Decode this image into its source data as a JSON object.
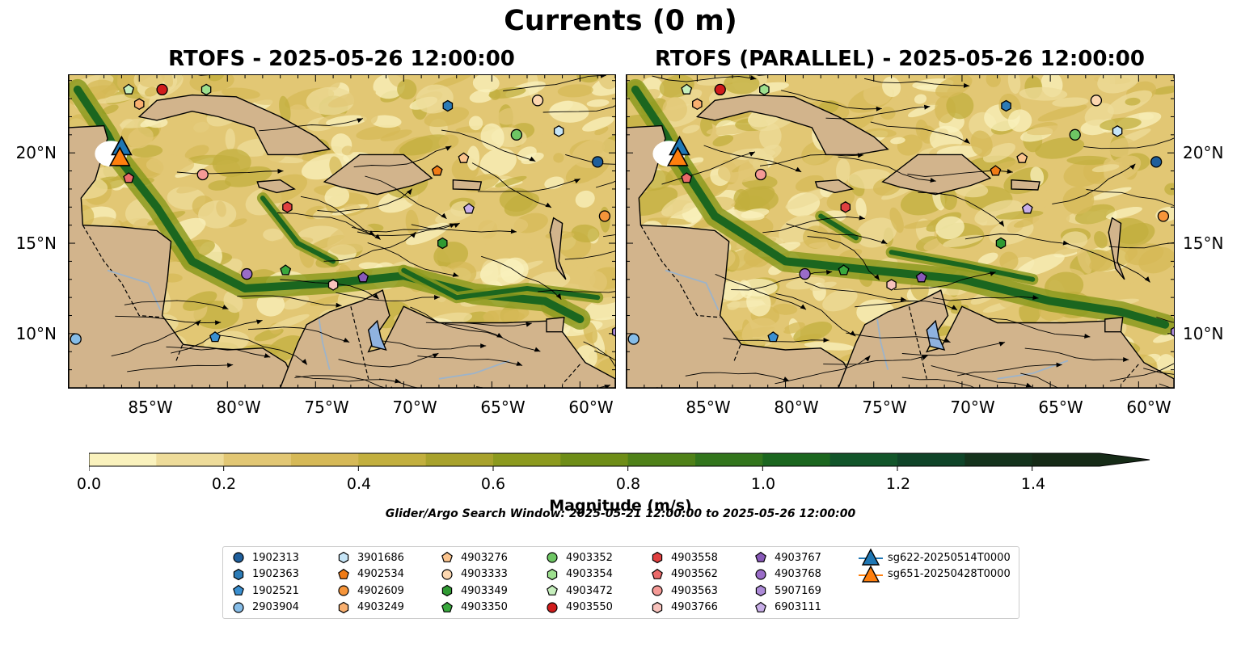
{
  "title": "Currents (0 m)",
  "panels": [
    {
      "title": "RTOFS - 2025-05-26 12:00:00"
    },
    {
      "title": "RTOFS (PARALLEL) - 2025-05-26 12:00:00"
    }
  ],
  "axes": {
    "x_ticks": [
      "85°W",
      "80°W",
      "75°W",
      "70°W",
      "65°W",
      "60°W"
    ],
    "y_ticks": [
      "20°N",
      "15°N",
      "10°N"
    ],
    "lon_range": [
      -89,
      -58
    ],
    "lat_range": [
      7,
      24.3
    ]
  },
  "colorbar": {
    "label": "Magnitude (m/s)",
    "ticks": [
      "0.0",
      "0.2",
      "0.4",
      "0.6",
      "0.8",
      "1.0",
      "1.2",
      "1.4"
    ],
    "range": [
      0,
      1.5
    ],
    "extend": "max",
    "colors": [
      "#faf2bd",
      "#eedc9a",
      "#e2c774",
      "#d6b957",
      "#c2af3e",
      "#a8a22c",
      "#8c9a1e",
      "#6e8d17",
      "#4f8118",
      "#32751c",
      "#1b661f",
      "#12552a",
      "#0f4428",
      "#14331c",
      "#162b17"
    ]
  },
  "search_window": "Glider/Argo Search Window: 2025-05-21 12:00:00 to 2025-05-26 12:00:00",
  "legend": {
    "items": [
      {
        "label": "1902313",
        "marker": "circle",
        "color": "#1f5f9c"
      },
      {
        "label": "1902363",
        "marker": "hexagon",
        "color": "#2c7bb6"
      },
      {
        "label": "1902521",
        "marker": "pentagon",
        "color": "#3a8fd0"
      },
      {
        "label": "2903904",
        "marker": "circle",
        "color": "#86bde8"
      },
      {
        "label": "3901686",
        "marker": "hexagon",
        "color": "#c6e5f7"
      },
      {
        "label": "4902534",
        "marker": "pentagon",
        "color": "#f07b16"
      },
      {
        "label": "4902609",
        "marker": "circle",
        "color": "#f6953a"
      },
      {
        "label": "4903249",
        "marker": "hexagon",
        "color": "#f9b070"
      },
      {
        "label": "4903276",
        "marker": "pentagon",
        "color": "#fbc48e"
      },
      {
        "label": "4903333",
        "marker": "circle",
        "color": "#fcd7b0"
      },
      {
        "label": "4903349",
        "marker": "hexagon",
        "color": "#2f9a32"
      },
      {
        "label": "4903350",
        "marker": "pentagon",
        "color": "#39a83d"
      },
      {
        "label": "4903352",
        "marker": "circle",
        "color": "#6ec664"
      },
      {
        "label": "4903354",
        "marker": "hexagon",
        "color": "#9ee08f"
      },
      {
        "label": "4903472",
        "marker": "pentagon",
        "color": "#c6efbd"
      },
      {
        "label": "4903550",
        "marker": "circle",
        "color": "#d01c1c"
      },
      {
        "label": "4903558",
        "marker": "hexagon",
        "color": "#e04040"
      },
      {
        "label": "4903562",
        "marker": "pentagon",
        "color": "#ea6a6a"
      },
      {
        "label": "4903563",
        "marker": "circle",
        "color": "#f59a96"
      },
      {
        "label": "4903766",
        "marker": "hexagon",
        "color": "#f8c2bc"
      },
      {
        "label": "4903767",
        "marker": "pentagon",
        "color": "#8859b8"
      },
      {
        "label": "4903768",
        "marker": "circle",
        "color": "#9a6cc8"
      },
      {
        "label": "5907169",
        "marker": "hexagon",
        "color": "#ad8bd8"
      },
      {
        "label": "6903111",
        "marker": "pentagon",
        "color": "#c8aee8"
      },
      {
        "label": "sg622-20250514T0000",
        "marker": "triangle",
        "color": "#1f77b4"
      },
      {
        "label": "sg651-20250428T0000",
        "marker": "triangle",
        "color": "#ff7f0e"
      }
    ]
  },
  "floats": [
    {
      "id": "1902313",
      "lon": -59.0,
      "lat": 19.5
    },
    {
      "id": "1902363",
      "lon": -67.5,
      "lat": 22.6
    },
    {
      "id": "1902521",
      "lon": -80.7,
      "lat": 9.8
    },
    {
      "id": "2903904",
      "lon": -88.6,
      "lat": 9.7
    },
    {
      "id": "3901686",
      "lon": -61.2,
      "lat": 21.2
    },
    {
      "id": "4902534",
      "lon": -68.1,
      "lat": 19.0
    },
    {
      "id": "4902609",
      "lon": -58.6,
      "lat": 16.5
    },
    {
      "id": "4903249",
      "lon": -85.0,
      "lat": 22.7
    },
    {
      "id": "4903276",
      "lon": -66.6,
      "lat": 19.7
    },
    {
      "id": "4903333",
      "lon": -62.4,
      "lat": 22.9
    },
    {
      "id": "4903349",
      "lon": -67.8,
      "lat": 15.0
    },
    {
      "id": "4903350",
      "lon": -76.7,
      "lat": 13.5
    },
    {
      "id": "4903352",
      "lon": -63.6,
      "lat": 21.0
    },
    {
      "id": "4903354",
      "lon": -81.2,
      "lat": 23.5
    },
    {
      "id": "4903472",
      "lon": -85.6,
      "lat": 23.5
    },
    {
      "id": "4903550",
      "lon": -83.7,
      "lat": 23.5
    },
    {
      "id": "4903558",
      "lon": -76.6,
      "lat": 17.0
    },
    {
      "id": "4903562",
      "lon": -85.6,
      "lat": 18.6
    },
    {
      "id": "4903563",
      "lon": -81.4,
      "lat": 18.8
    },
    {
      "id": "4903766",
      "lon": -74.0,
      "lat": 12.7
    },
    {
      "id": "4903767",
      "lon": -72.3,
      "lat": 13.1
    },
    {
      "id": "4903768",
      "lon": -78.9,
      "lat": 13.3
    },
    {
      "id": "5907169",
      "lon": -57.9,
      "lat": 10.1
    },
    {
      "id": "6903111",
      "lon": -66.3,
      "lat": 16.9
    }
  ],
  "gliders": [
    {
      "id": "sg622-20250514T0000",
      "lon": -86.0,
      "lat": 20.3
    },
    {
      "id": "sg651-20250428T0000",
      "lon": -86.1,
      "lat": 19.7
    }
  ]
}
